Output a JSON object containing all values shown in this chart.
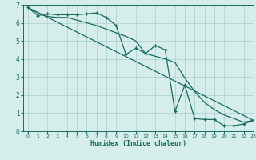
{
  "xlabel": "Humidex (Indice chaleur)",
  "bg_color": "#d5eeeb",
  "grid_color": "#aacfca",
  "line_color": "#1a6b5a",
  "xlim": [
    -0.5,
    23
  ],
  "ylim": [
    0,
    7
  ],
  "xticks": [
    0,
    1,
    2,
    3,
    4,
    5,
    6,
    7,
    8,
    9,
    10,
    11,
    12,
    13,
    14,
    15,
    16,
    17,
    18,
    19,
    20,
    21,
    22,
    23
  ],
  "yticks": [
    0,
    1,
    2,
    3,
    4,
    5,
    6,
    7
  ],
  "line1_x": [
    0,
    1,
    2,
    3,
    4,
    5,
    6,
    7,
    8,
    9,
    10,
    11,
    12,
    13,
    14,
    15,
    16,
    17,
    18,
    19,
    20,
    21,
    22,
    23
  ],
  "line1_y": [
    6.85,
    6.4,
    6.5,
    6.45,
    6.45,
    6.45,
    6.5,
    6.55,
    6.3,
    5.85,
    4.25,
    4.6,
    4.3,
    4.75,
    4.5,
    1.1,
    2.55,
    0.7,
    0.65,
    0.65,
    0.3,
    0.3,
    0.4,
    0.6
  ],
  "line2_x": [
    0,
    23
  ],
  "line2_y": [
    6.85,
    0.6
  ],
  "line3_x": [
    0,
    1,
    2,
    3,
    4,
    5,
    6,
    7,
    8,
    9,
    10,
    11,
    12,
    13,
    14,
    15,
    16,
    17,
    18,
    19,
    20,
    21,
    22,
    23
  ],
  "line3_y": [
    6.85,
    6.55,
    6.35,
    6.3,
    6.3,
    6.15,
    6.0,
    5.85,
    5.65,
    5.45,
    5.25,
    5.0,
    4.3,
    4.15,
    4.0,
    3.8,
    2.95,
    2.2,
    1.6,
    1.2,
    0.9,
    0.7,
    0.5,
    0.6
  ]
}
